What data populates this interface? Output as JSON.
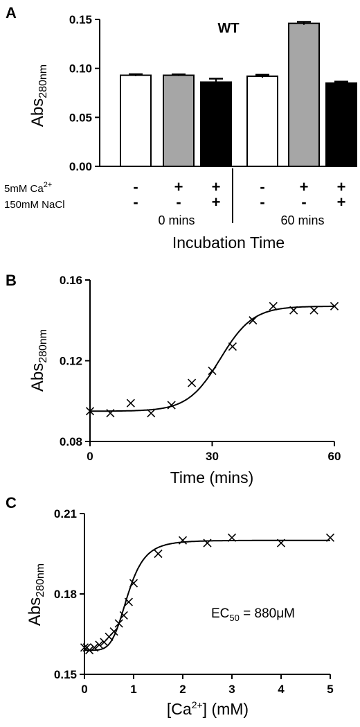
{
  "chart_data": [
    {
      "panel": "A",
      "type": "bar",
      "title": "WT",
      "ylabel": "Abs",
      "ylabel_sub": "280nm",
      "xlabel": "Incubation Time",
      "ylim": [
        0,
        0.15
      ],
      "yticks": [
        "0.00",
        "0.05",
        "0.10",
        "0.15"
      ],
      "conditions": {
        "ca_label": "5mM Ca",
        "ca_sup": "2+",
        "nacl_label": "150mM NaCl",
        "ca_signs": [
          "-",
          "+",
          "+",
          "-",
          "+",
          "+"
        ],
        "nacl_signs": [
          "-",
          "-",
          "+",
          "-",
          "-",
          "+"
        ]
      },
      "groups": [
        "0 mins",
        "60 mins"
      ],
      "bars": [
        {
          "value": 0.093,
          "error": 0.001,
          "color": "#ffffff"
        },
        {
          "value": 0.093,
          "error": 0.0008,
          "color": "#a6a6a6"
        },
        {
          "value": 0.086,
          "error": 0.0035,
          "color": "#000000"
        },
        {
          "value": 0.092,
          "error": 0.0015,
          "color": "#ffffff"
        },
        {
          "value": 0.146,
          "error": 0.0015,
          "color": "#a6a6a6"
        },
        {
          "value": 0.085,
          "error": 0.0015,
          "color": "#000000"
        }
      ]
    },
    {
      "panel": "B",
      "type": "scatter",
      "ylabel": "Abs",
      "ylabel_sub": "280nm",
      "xlabel": "Time (mins)",
      "xlim": [
        0,
        60
      ],
      "ylim": [
        0.08,
        0.16
      ],
      "xticks": [
        "0",
        "30",
        "60"
      ],
      "yticks": [
        "0.08",
        "0.12",
        "0.16"
      ],
      "x": [
        0,
        5,
        10,
        15,
        20,
        25,
        30,
        35,
        40,
        45,
        50,
        55,
        60
      ],
      "y": [
        0.095,
        0.094,
        0.099,
        0.094,
        0.098,
        0.109,
        0.115,
        0.127,
        0.14,
        0.147,
        0.145,
        0.145,
        0.147
      ],
      "fit": {
        "bottom": 0.095,
        "top": 0.147,
        "mid": 32,
        "slope": 4
      }
    },
    {
      "panel": "C",
      "type": "scatter",
      "ylabel": "Abs",
      "ylabel_sub": "280nm",
      "xlabel_pre": "[Ca",
      "xlabel_sup": "2+",
      "xlabel_post": "] (mM)",
      "xlim": [
        0,
        5
      ],
      "ylim": [
        0.15,
        0.21
      ],
      "xticks": [
        "0",
        "1",
        "2",
        "3",
        "4",
        "5"
      ],
      "yticks": [
        "0.15",
        "0.18",
        "0.21"
      ],
      "x": [
        0.0,
        0.05,
        0.1,
        0.2,
        0.3,
        0.4,
        0.5,
        0.6,
        0.7,
        0.8,
        0.9,
        1.0,
        1.5,
        2.0,
        2.5,
        3.0,
        4.0,
        5.0
      ],
      "y": [
        0.16,
        0.16,
        0.159,
        0.16,
        0.161,
        0.162,
        0.164,
        0.166,
        0.169,
        0.172,
        0.177,
        0.184,
        0.195,
        0.2,
        0.199,
        0.201,
        0.199,
        0.201
      ],
      "fit": {
        "bottom": 0.159,
        "top": 0.2,
        "ec50": 0.88,
        "hill": 5
      },
      "annotation_pre": "EC",
      "annotation_sub": "50",
      "annotation_post": " = 880μM"
    }
  ]
}
